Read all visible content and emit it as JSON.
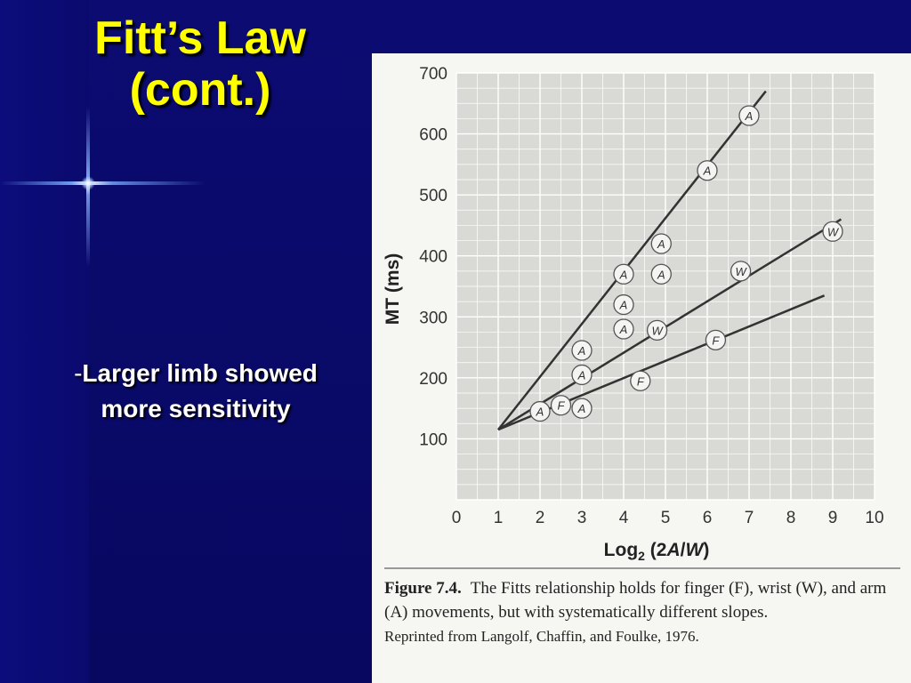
{
  "slide": {
    "title_line1": "Fitt’s Law",
    "title_line2": "(cont.)",
    "bullet_dash": "-",
    "bullet_line1": "Larger limb showed",
    "bullet_line2": "more sensitivity"
  },
  "colors": {
    "background": "#0a0a6a",
    "title": "#ffff00",
    "text": "#ffffff"
  },
  "chart_data": {
    "type": "scatter",
    "title": "",
    "xlabel": "Log2 (2A/W)",
    "ylabel": "MT (ms)",
    "xlim": [
      0,
      10
    ],
    "ylim": [
      0,
      700
    ],
    "x_ticks": [
      0,
      1,
      2,
      3,
      4,
      5,
      6,
      7,
      8,
      9,
      10
    ],
    "y_ticks": [
      100,
      200,
      300,
      400,
      500,
      600,
      700
    ],
    "grid": true,
    "series": [
      {
        "name": "A",
        "points": [
          [
            2.0,
            145
          ],
          [
            3.0,
            245
          ],
          [
            3.0,
            205
          ],
          [
            3.0,
            150
          ],
          [
            4.0,
            370
          ],
          [
            4.0,
            320
          ],
          [
            4.0,
            280
          ],
          [
            4.9,
            420
          ],
          [
            4.9,
            370
          ],
          [
            6.0,
            540
          ],
          [
            7.0,
            630
          ]
        ],
        "fit": [
          [
            1.0,
            115
          ],
          [
            7.4,
            670
          ]
        ]
      },
      {
        "name": "W",
        "points": [
          [
            4.8,
            278
          ],
          [
            6.8,
            375
          ],
          [
            9.0,
            440
          ]
        ],
        "fit": [
          [
            1.0,
            115
          ],
          [
            9.2,
            460
          ]
        ]
      },
      {
        "name": "F",
        "points": [
          [
            2.5,
            155
          ],
          [
            4.4,
            195
          ],
          [
            6.2,
            262
          ]
        ],
        "fit": [
          [
            1.0,
            115
          ],
          [
            8.8,
            335
          ]
        ]
      }
    ]
  },
  "caption": {
    "label": "Figure 7.4.",
    "text": "The Fitts relationship holds for finger (F), wrist (W), and arm (A) movements, but with systematically different slopes.",
    "credit": "Reprinted from Langolf, Chaffin, and Foulke, 1976."
  }
}
